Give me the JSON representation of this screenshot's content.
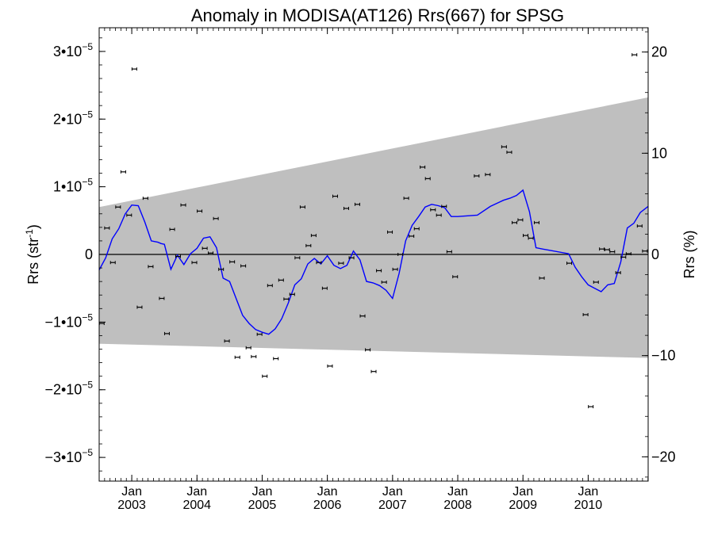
{
  "chart_data": {
    "type": "scatter",
    "title": "Anomaly in MODISA(AT126) Rrs(667) for SPSG",
    "ylabel_left_main": "Rrs (str",
    "ylabel_left_exp": "-1",
    "ylabel_left_tail": ")",
    "ylabel_right": "Rrs (%)",
    "x_range": [
      2002.5,
      2010.92
    ],
    "ylim": [
      -3.35e-05,
      3.35e-05
    ],
    "ylim_right_percent": [
      -22.4,
      22.4
    ],
    "left_ticks": [
      {
        "v": 3e-05,
        "mant": "3•10",
        "exp": "−5"
      },
      {
        "v": 2e-05,
        "mant": "2•10",
        "exp": "−5"
      },
      {
        "v": 1e-05,
        "mant": "1•10",
        "exp": "−5"
      },
      {
        "v": 0,
        "mant": "0",
        "exp": ""
      },
      {
        "v": -1e-05,
        "mant": "−1•10",
        "exp": "−5"
      },
      {
        "v": -2e-05,
        "mant": "−2•10",
        "exp": "−5"
      },
      {
        "v": -3e-05,
        "mant": "−3•10",
        "exp": "−5"
      }
    ],
    "right_ticks": [
      {
        "v": 20,
        "label": "20"
      },
      {
        "v": 10,
        "label": "10"
      },
      {
        "v": 0,
        "label": "0"
      },
      {
        "v": -10,
        "label": "−10"
      },
      {
        "v": -20,
        "label": "−20"
      }
    ],
    "x_ticks": [
      {
        "x": 2003.0,
        "month": "Jan",
        "year": "2003"
      },
      {
        "x": 2004.0,
        "month": "Jan",
        "year": "2004"
      },
      {
        "x": 2005.0,
        "month": "Jan",
        "year": "2005"
      },
      {
        "x": 2006.0,
        "month": "Jan",
        "year": "2006"
      },
      {
        "x": 2007.0,
        "month": "Jan",
        "year": "2007"
      },
      {
        "x": 2008.0,
        "month": "Jan",
        "year": "2008"
      },
      {
        "x": 2009.0,
        "month": "Jan",
        "year": "2009"
      },
      {
        "x": 2010.0,
        "month": "Jan",
        "year": "2010"
      }
    ],
    "band": {
      "x_start": 2002.5,
      "x_end": 2010.92,
      "upper_start": 7e-06,
      "upper_end": 2.32e-05,
      "lower_start": -1.32e-05,
      "lower_end": -1.53e-05,
      "color": "#bfbfbf"
    },
    "zero_line": {
      "y": 0,
      "color": "#000000"
    },
    "series": [
      {
        "role": "points",
        "color": "#000000",
        "x": [
          2002.54,
          2002.62,
          2002.71,
          2002.79,
          2002.87,
          2002.96,
          2003.04,
          2003.12,
          2003.21,
          2003.29,
          2003.46,
          2003.54,
          2003.62,
          2003.71,
          2003.79,
          2003.96,
          2004.04,
          2004.12,
          2004.21,
          2004.29,
          2004.37,
          2004.46,
          2004.54,
          2004.62,
          2004.71,
          2004.79,
          2004.87,
          2004.96,
          2005.04,
          2005.12,
          2005.21,
          2005.29,
          2005.37,
          2005.46,
          2005.54,
          2005.62,
          2005.71,
          2005.79,
          2005.87,
          2005.96,
          2006.04,
          2006.12,
          2006.21,
          2006.29,
          2006.37,
          2006.46,
          2006.54,
          2006.62,
          2006.71,
          2006.79,
          2006.87,
          2006.96,
          2007.04,
          2007.12,
          2007.21,
          2007.29,
          2007.37,
          2007.46,
          2007.54,
          2007.62,
          2007.71,
          2007.79,
          2007.87,
          2007.96,
          2008.29,
          2008.46,
          2008.71,
          2008.79,
          2008.87,
          2008.96,
          2009.04,
          2009.12,
          2009.21,
          2009.29,
          2009.71,
          2009.96,
          2010.04,
          2010.12,
          2010.21,
          2010.29,
          2010.37,
          2010.46,
          2010.54,
          2010.62,
          2010.71,
          2010.79,
          2010.87
        ],
        "y": [
          -1.02e-05,
          3.9e-06,
          -1.2e-06,
          7e-06,
          1.22e-05,
          5.8e-06,
          2.74e-05,
          -7.8e-06,
          8.3e-06,
          -1.8e-06,
          -6.5e-06,
          -1.17e-05,
          3.7e-06,
          -3e-07,
          7.3e-06,
          -1.2e-06,
          6.4e-06,
          9e-07,
          2e-07,
          5.3e-06,
          -2.2e-06,
          -1.28e-05,
          -1.1e-06,
          -1.52e-05,
          -1.7e-06,
          -1.38e-05,
          -1.51e-05,
          -1.18e-05,
          -1.8e-05,
          -4.6e-06,
          -1.54e-05,
          -3.8e-06,
          -6.6e-06,
          -5.9e-06,
          -5e-07,
          7e-06,
          1.3e-06,
          2.8e-06,
          -1.2e-06,
          -5e-06,
          -1.65e-05,
          8.6e-06,
          -1.3e-06,
          6.8e-06,
          -5e-07,
          7.4e-06,
          -9.1e-06,
          -1.41e-05,
          -1.73e-05,
          -2.4e-06,
          -4.1e-06,
          3.3e-06,
          -2.2e-06,
          0,
          8.3e-06,
          2.7e-06,
          3.8e-06,
          1.29e-05,
          1.12e-05,
          6.6e-06,
          5.8e-06,
          7.1e-06,
          4e-07,
          -3.3e-06,
          1.16e-05,
          1.18e-05,
          1.59e-05,
          1.51e-05,
          4.7e-06,
          5.1e-06,
          2.8e-06,
          2.4e-06,
          4.7e-06,
          -3.5e-06,
          -1.3e-06,
          -8.9e-06,
          -2.25e-05,
          -4.1e-06,
          8e-07,
          7e-07,
          4e-07,
          -2.7e-06,
          -4e-07,
          1e-07,
          2.95e-05,
          4.2e-06,
          5e-07
        ]
      },
      {
        "role": "smoothed",
        "color": "#0000ff",
        "x": [
          2002.5,
          2002.6,
          2002.7,
          2002.8,
          2002.9,
          2003.0,
          2003.1,
          2003.2,
          2003.3,
          2003.4,
          2003.45,
          2003.5,
          2003.6,
          2003.7,
          2003.8,
          2003.9,
          2004.0,
          2004.1,
          2004.2,
          2004.3,
          2004.4,
          2004.5,
          2004.6,
          2004.7,
          2004.8,
          2004.9,
          2005.0,
          2005.1,
          2005.2,
          2005.3,
          2005.4,
          2005.5,
          2005.6,
          2005.7,
          2005.8,
          2005.9,
          2006.0,
          2006.1,
          2006.2,
          2006.3,
          2006.4,
          2006.5,
          2006.6,
          2006.7,
          2006.8,
          2006.9,
          2007.0,
          2007.1,
          2007.2,
          2007.3,
          2007.4,
          2007.5,
          2007.6,
          2007.7,
          2007.8,
          2007.9,
          2008.0,
          2008.3,
          2008.5,
          2008.7,
          2008.8,
          2008.9,
          2009.0,
          2009.1,
          2009.2,
          2009.3,
          2009.7,
          2009.8,
          2009.9,
          2010.0,
          2010.1,
          2010.2,
          2010.3,
          2010.4,
          2010.5,
          2010.6,
          2010.7,
          2010.8,
          2010.92
        ],
        "y": [
          -2.3e-06,
          -5e-07,
          2.3e-06,
          3.8e-06,
          6e-06,
          7.3e-06,
          7.2e-06,
          4.8e-06,
          2e-06,
          1.8e-06,
          1.6e-06,
          1.5e-06,
          -2.2e-06,
          -1e-07,
          -1.5e-06,
          1e-07,
          9e-07,
          2.4e-06,
          2.6e-06,
          1e-06,
          -3.5e-06,
          -4e-06,
          -6.5e-06,
          -9e-06,
          -1.02e-05,
          -1.11e-05,
          -1.15e-05,
          -1.18e-05,
          -1.1e-05,
          -9.5e-06,
          -7.2e-06,
          -4.5e-06,
          -3.6e-06,
          -1.4e-06,
          -6e-07,
          -1.4e-06,
          -2e-07,
          -1.6e-06,
          -2.1e-06,
          -1.6e-06,
          5e-07,
          -8e-07,
          -4e-06,
          -4.2e-06,
          -4.6e-06,
          -5.3e-06,
          -6.5e-06,
          -2.8e-06,
          2e-06,
          4.3e-06,
          5.6e-06,
          7e-06,
          7.4e-06,
          7.2e-06,
          6.9e-06,
          5.6e-06,
          5.6e-06,
          5.8e-06,
          7.1e-06,
          8e-06,
          8.3e-06,
          8.7e-06,
          9.5e-06,
          6.3e-06,
          1e-06,
          8e-07,
          1e-07,
          -1.9e-06,
          -3.3e-06,
          -4.5e-06,
          -5e-06,
          -5.5e-06,
          -4.5e-06,
          -4.3e-06,
          -1.1e-06,
          3.9e-06,
          4.6e-06,
          6.2e-06,
          7.1e-06
        ]
      }
    ],
    "grid": false,
    "legend": "none"
  }
}
